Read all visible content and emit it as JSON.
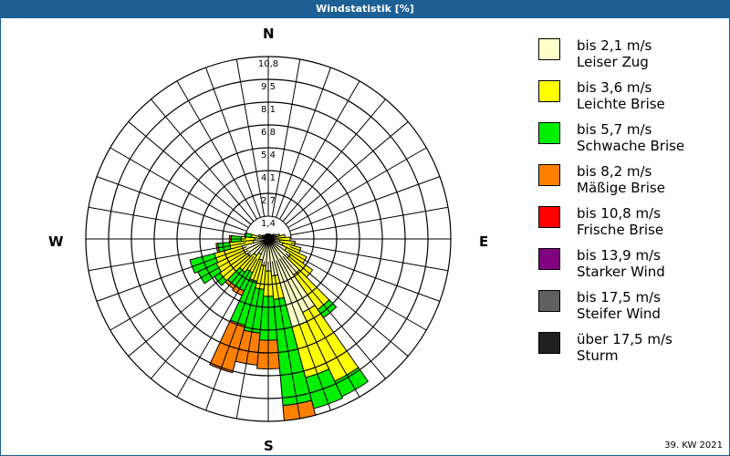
{
  "window": {
    "title": "Windstatistik [%]"
  },
  "compass": {
    "n": "N",
    "e": "E",
    "s": "S",
    "w": "W"
  },
  "footer": {
    "week": "39. KW 2021"
  },
  "legend": [
    {
      "range": "bis 2,1 m/s",
      "name": "Leiser Zug",
      "color": "#ffffc8"
    },
    {
      "range": "bis 3,6 m/s",
      "name": "Leichte Brise",
      "color": "#ffff00"
    },
    {
      "range": "bis 5,7 m/s",
      "name": "Schwache Brise",
      "color": "#00ee00"
    },
    {
      "range": "bis 8,2 m/s",
      "name": "Mäßige Brise",
      "color": "#ff8000"
    },
    {
      "range": "bis 10,8 m/s",
      "name": "Frische Brise",
      "color": "#ff0000"
    },
    {
      "range": "bis 13,9 m/s",
      "name": "Starker Wind",
      "color": "#800080"
    },
    {
      "range": "bis 17,5 m/s",
      "name": "Steifer Wind",
      "color": "#606060"
    },
    {
      "range": "über 17,5 m/s",
      "name": "Sturm",
      "color": "#202020"
    }
  ],
  "chart_data": {
    "type": "wind-rose",
    "title": "Windstatistik [%]",
    "unit": "%",
    "ring_labels": [
      "1,4",
      "2,7",
      "4,1",
      "5,4",
      "6,8",
      "8,1",
      "9,5",
      "10,8"
    ],
    "rings": [
      1.35,
      2.7,
      4.05,
      5.4,
      6.75,
      8.1,
      9.45,
      10.8
    ],
    "rmax": 10.8,
    "sector_width_deg": 10,
    "classes": [
      "bis 2,1 m/s",
      "bis 3,6 m/s",
      "bis 5,7 m/s",
      "bis 8,2 m/s",
      "bis 10,8 m/s",
      "bis 13,9 m/s",
      "bis 17,5 m/s",
      "über 17,5 m/s"
    ],
    "colors": [
      "#ffffc8",
      "#ffff00",
      "#00ee00",
      "#ff8000",
      "#ff0000",
      "#800080",
      "#606060",
      "#202020"
    ],
    "cumulative_note": "values are cumulative % boundaries per class, outward from center",
    "sectors": [
      {
        "dir": 0,
        "cum": [
          0.2,
          0.3
        ]
      },
      {
        "dir": 10,
        "cum": [
          0.2,
          0.3
        ]
      },
      {
        "dir": 20,
        "cum": [
          0.2,
          0.3
        ]
      },
      {
        "dir": 30,
        "cum": [
          0.2,
          0.3
        ]
      },
      {
        "dir": 40,
        "cum": [
          0.2,
          0.3
        ]
      },
      {
        "dir": 50,
        "cum": [
          0.2,
          0.4
        ]
      },
      {
        "dir": 60,
        "cum": [
          0.3,
          0.5
        ]
      },
      {
        "dir": 70,
        "cum": [
          0.4,
          0.7
        ]
      },
      {
        "dir": 80,
        "cum": [
          0.5,
          1.0
        ]
      },
      {
        "dir": 90,
        "cum": [
          0.6,
          1.3
        ]
      },
      {
        "dir": 100,
        "cum": [
          0.7,
          1.6
        ]
      },
      {
        "dir": 110,
        "cum": [
          0.9,
          2.0
        ]
      },
      {
        "dir": 120,
        "cum": [
          1.2,
          2.5,
          2.5
        ]
      },
      {
        "dir": 130,
        "cum": [
          1.6,
          3.2
        ]
      },
      {
        "dir": 140,
        "cum": [
          2.6,
          5.1,
          5.7
        ]
      },
      {
        "dir": 150,
        "cum": [
          4.8,
          9.3,
          10.3
        ]
      },
      {
        "dir": 160,
        "cum": [
          5.4,
          8.5,
          10.4
        ]
      },
      {
        "dir": 170,
        "cum": [
          2.2,
          3.6,
          9.9,
          10.8
        ]
      },
      {
        "dir": 180,
        "cum": [
          1.9,
          3.4,
          6.0,
          7.7
        ]
      },
      {
        "dir": 190,
        "cum": [
          1.6,
          3.0,
          5.6,
          7.5
        ]
      },
      {
        "dir": 200,
        "cum": [
          1.3,
          2.6,
          5.3,
          8.2
        ]
      },
      {
        "dir": 210,
        "cum": [
          1.0,
          2.2,
          3.4,
          3.7
        ]
      },
      {
        "dir": 220,
        "cum": [
          1.2,
          2.4,
          3.4,
          3.6
        ]
      },
      {
        "dir": 230,
        "cum": [
          1.5,
          3.5,
          3.9,
          3.9
        ]
      },
      {
        "dir": 240,
        "cum": [
          1.6,
          3.4,
          4.6,
          4.6
        ]
      },
      {
        "dir": 250,
        "cum": [
          1.6,
          3.3,
          4.8,
          4.8
        ]
      },
      {
        "dir": 260,
        "cum": [
          0.9,
          2.3,
          3.0,
          3.1
        ]
      },
      {
        "dir": 270,
        "cum": [
          0.8,
          1.6,
          2.2,
          2.3
        ]
      },
      {
        "dir": 280,
        "cum": [
          0.5,
          1.0,
          1.4
        ]
      },
      {
        "dir": 290,
        "cum": [
          0.3,
          0.6
        ]
      },
      {
        "dir": 300,
        "cum": [
          0.2,
          0.4
        ]
      },
      {
        "dir": 310,
        "cum": [
          0.2,
          0.3
        ]
      },
      {
        "dir": 320,
        "cum": [
          0.2,
          0.3
        ]
      },
      {
        "dir": 330,
        "cum": [
          0.2,
          0.3
        ]
      },
      {
        "dir": 340,
        "cum": [
          0.2,
          0.3
        ]
      },
      {
        "dir": 350,
        "cum": [
          0.2,
          0.3
        ]
      }
    ]
  }
}
